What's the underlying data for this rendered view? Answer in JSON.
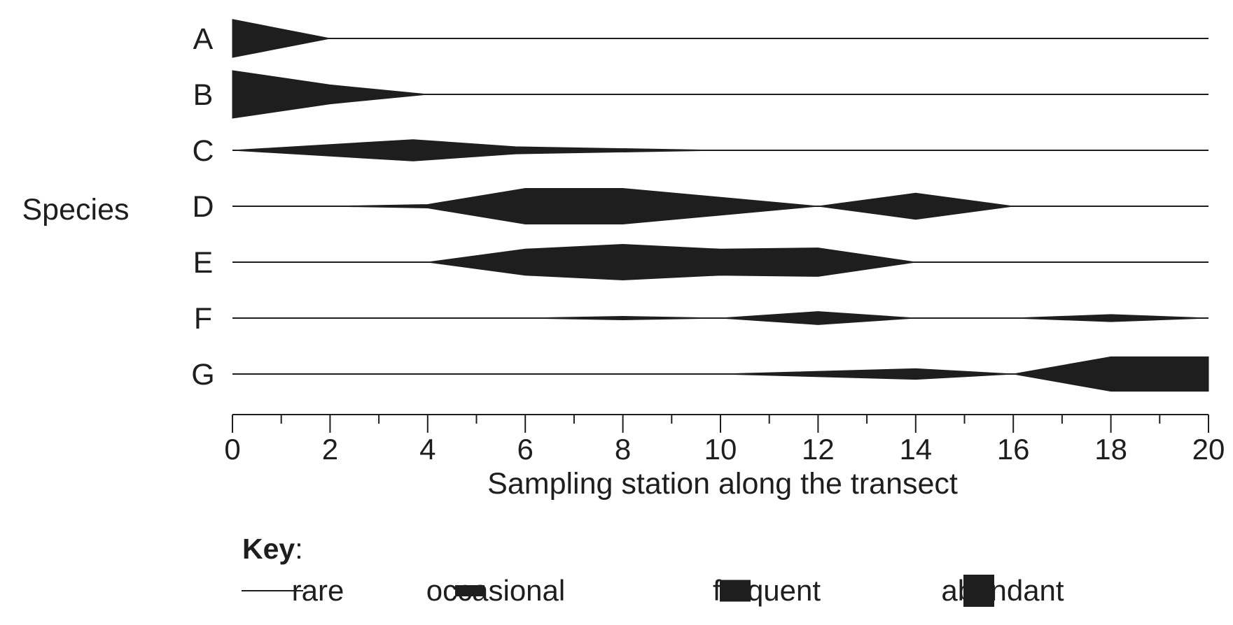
{
  "chart_data": {
    "type": "kite diagram",
    "ylabel": "Species",
    "xlabel": "Sampling station along the transect",
    "xlim": [
      0,
      20
    ],
    "x_ticks": [
      0,
      2,
      4,
      6,
      8,
      10,
      12,
      14,
      16,
      18,
      20
    ],
    "x_minor_step": 1,
    "abundance_scale": {
      "rare": 0,
      "occasional": 1,
      "frequent": 2,
      "abundant": 3
    },
    "series": [
      {
        "name": "A",
        "points": [
          [
            0,
            1.6
          ],
          [
            2,
            0
          ],
          [
            20,
            0
          ]
        ]
      },
      {
        "name": "B",
        "points": [
          [
            0,
            2.0
          ],
          [
            2,
            0.8
          ],
          [
            4,
            0
          ],
          [
            20,
            0
          ]
        ]
      },
      {
        "name": "C",
        "points": [
          [
            0,
            0
          ],
          [
            3.7,
            0.9
          ],
          [
            5.8,
            0.3
          ],
          [
            10,
            0
          ],
          [
            20,
            0
          ]
        ]
      },
      {
        "name": "D",
        "points": [
          [
            0,
            0
          ],
          [
            2,
            0
          ],
          [
            4,
            0.15
          ],
          [
            6,
            1.5
          ],
          [
            8,
            1.5
          ],
          [
            12,
            0
          ],
          [
            14,
            1.1
          ],
          [
            16,
            0
          ],
          [
            20,
            0
          ]
        ]
      },
      {
        "name": "E",
        "points": [
          [
            0,
            0
          ],
          [
            4,
            0
          ],
          [
            6,
            1.1
          ],
          [
            8,
            1.5
          ],
          [
            10,
            1.1
          ],
          [
            12,
            1.2
          ],
          [
            14,
            0
          ],
          [
            20,
            0
          ]
        ]
      },
      {
        "name": "F",
        "points": [
          [
            0,
            0
          ],
          [
            6,
            0
          ],
          [
            8,
            0.15
          ],
          [
            10,
            0
          ],
          [
            12,
            0.55
          ],
          [
            14,
            0
          ],
          [
            16,
            0
          ],
          [
            18,
            0.3
          ],
          [
            20,
            0
          ]
        ]
      },
      {
        "name": "G",
        "points": [
          [
            0,
            0
          ],
          [
            10,
            0
          ],
          [
            14,
            0.45
          ],
          [
            16,
            0
          ],
          [
            18,
            1.45
          ],
          [
            20,
            1.45
          ]
        ]
      }
    ],
    "key": {
      "title": "Key",
      "colon": ":",
      "items": [
        {
          "label": "rare",
          "level": 0
        },
        {
          "label": "occasional",
          "level": 1
        },
        {
          "label": "frequent",
          "level": 2
        },
        {
          "label": "abundant",
          "level": 3
        }
      ]
    },
    "colors": {
      "ink": "#1e1e1e",
      "background": "#ffffff"
    }
  }
}
